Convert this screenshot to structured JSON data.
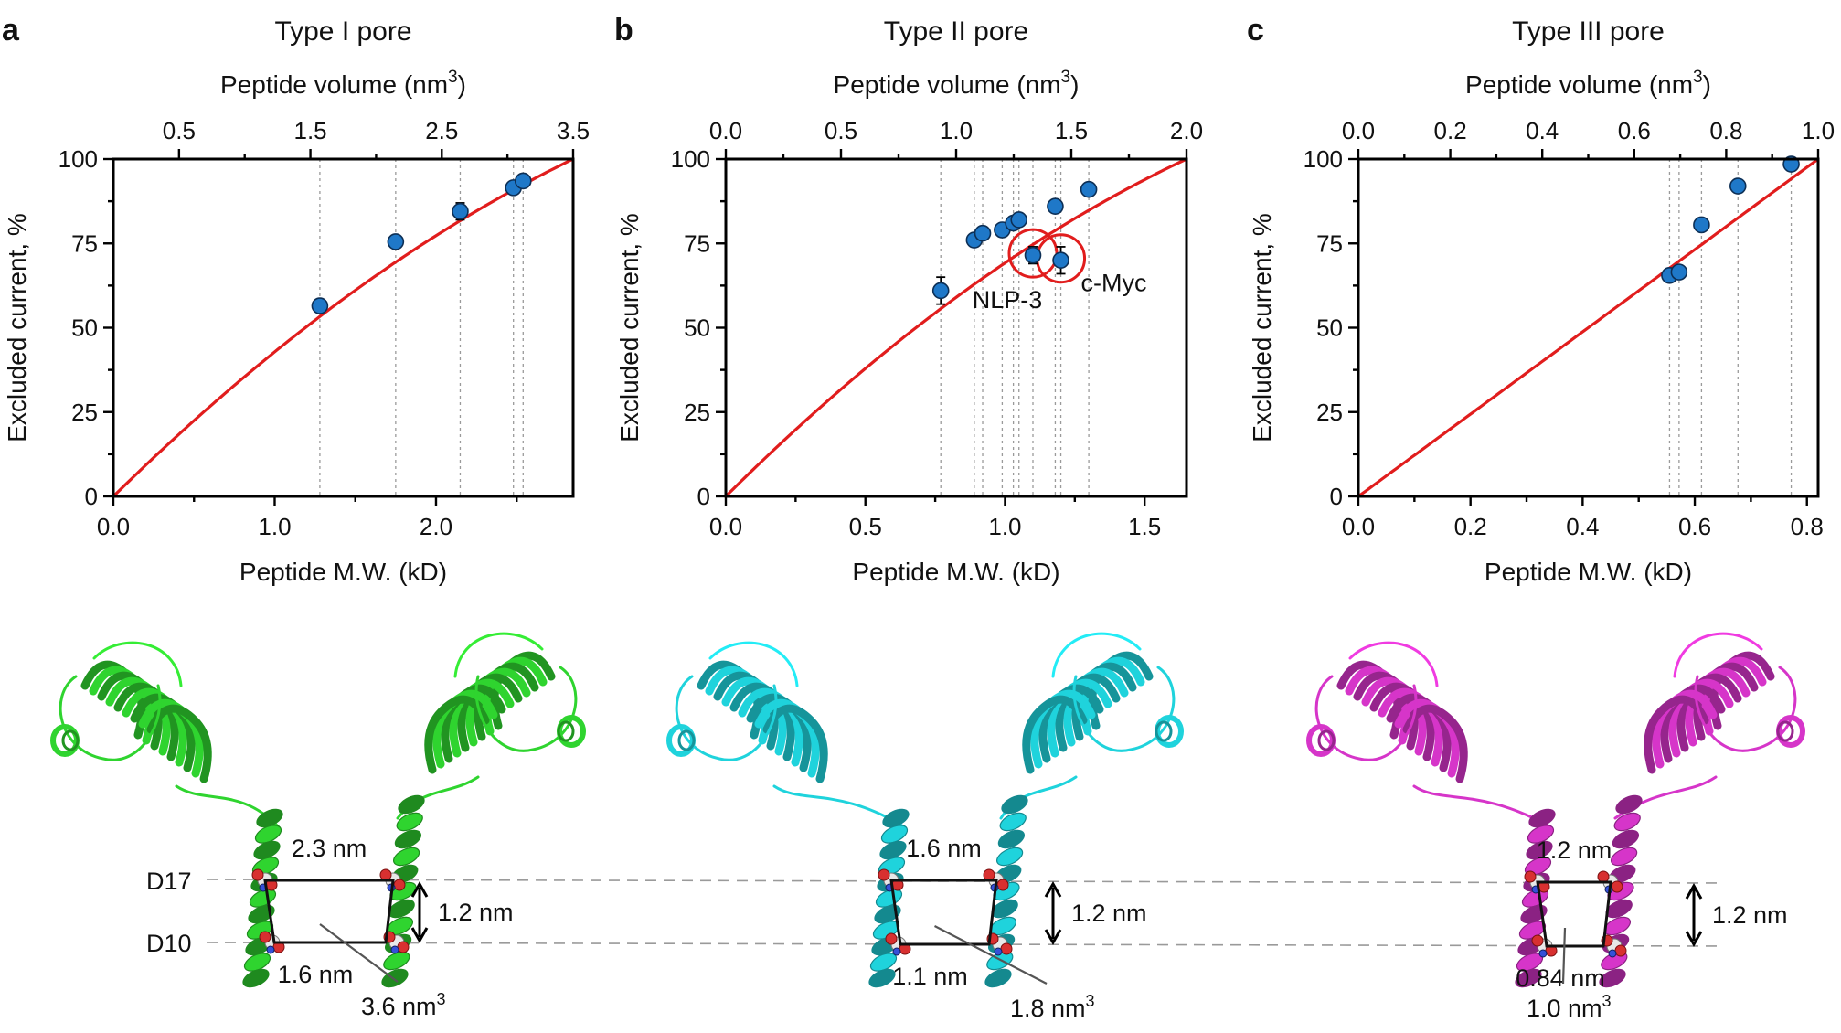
{
  "chart_data": [
    {
      "type": "scatter",
      "panel_label": "a",
      "title": "Type I pore",
      "xlabel": "Peptide M.W. (kD)",
      "ylabel": "Excluded current, %",
      "x2label_main": "Peptide volume (nm",
      "x2label_sup": "3",
      "x2label_end": ")",
      "xlim": [
        0,
        2.85
      ],
      "ylim": [
        0,
        100
      ],
      "x2lim": [
        0,
        3.5
      ],
      "xticks": [
        0.0,
        1.0,
        2.0
      ],
      "xtick_labels": [
        "0.0",
        "1.0",
        "2.0"
      ],
      "x_minor": [
        0.5,
        1.5,
        2.5
      ],
      "yticks": [
        0,
        25,
        50,
        75,
        100
      ],
      "ytick_labels": [
        "0",
        "25",
        "50",
        "75",
        "100"
      ],
      "x2ticks": [
        0.5,
        1.5,
        2.5,
        3.5
      ],
      "x2tick_labels": [
        "0.5",
        "1.5",
        "2.5",
        "3.5"
      ],
      "x2_minor": [
        1.0,
        2.0,
        3.0
      ],
      "series": [
        {
          "name": "peptides",
          "x": [
            1.28,
            1.75,
            2.15,
            2.48,
            2.54
          ],
          "y": [
            56.5,
            75.5,
            84.5,
            91.5,
            93.5
          ],
          "err": [
            0,
            0,
            2.5,
            0,
            0
          ]
        }
      ],
      "fit": {
        "name": "fit",
        "kind": "quadratic",
        "curvature": 0.34
      }
    },
    {
      "type": "scatter",
      "panel_label": "b",
      "title": "Type II pore",
      "xlabel": "Peptide M.W. (kD)",
      "ylabel": "Excluded current, %",
      "x2label_main": "Peptide volume (nm",
      "x2label_sup": "3",
      "x2label_end": ")",
      "xlim": [
        0,
        1.65
      ],
      "ylim": [
        0,
        100
      ],
      "x2lim": [
        0,
        2.0
      ],
      "xticks": [
        0.0,
        0.5,
        1.0,
        1.5
      ],
      "xtick_labels": [
        "0.0",
        "0.5",
        "1.0",
        "1.5"
      ],
      "x_minor": [
        0.25,
        0.75,
        1.25
      ],
      "yticks": [
        0,
        25,
        50,
        75,
        100
      ],
      "ytick_labels": [
        "0",
        "25",
        "50",
        "75",
        "100"
      ],
      "x2ticks": [
        0.0,
        0.5,
        1.0,
        1.5,
        2.0
      ],
      "x2tick_labels": [
        "0.0",
        "0.5",
        "1.0",
        "1.5",
        "2.0"
      ],
      "x2_minor": [
        0.25,
        0.75,
        1.25,
        1.75
      ],
      "series": [
        {
          "name": "peptides",
          "x": [
            0.77,
            0.89,
            0.92,
            0.99,
            1.03,
            1.05,
            1.1,
            1.18,
            1.2,
            1.3
          ],
          "y": [
            61,
            76,
            78,
            79,
            81,
            82,
            71.5,
            86,
            70,
            91
          ],
          "err": [
            4,
            0,
            0,
            0,
            0,
            0,
            2.5,
            0,
            4,
            0
          ]
        }
      ],
      "fit": {
        "name": "fit",
        "kind": "quadratic",
        "curvature": 0.36
      },
      "highlights": [
        {
          "label": "NLP-3",
          "x": 1.1,
          "y": 71.5
        },
        {
          "label": "c-Myc",
          "x": 1.2,
          "y": 70
        }
      ]
    },
    {
      "type": "scatter",
      "panel_label": "c",
      "title": "Type III pore",
      "xlabel": "Peptide M.W. (kD)",
      "ylabel": "Excluded current, %",
      "x2label_main": "Peptide volume (nm",
      "x2label_sup": "3",
      "x2label_end": ")",
      "xlim": [
        0,
        0.82
      ],
      "ylim": [
        0,
        100
      ],
      "x2lim": [
        0,
        1.0
      ],
      "xticks": [
        0.0,
        0.2,
        0.4,
        0.6,
        0.8
      ],
      "xtick_labels": [
        "0.0",
        "0.2",
        "0.4",
        "0.6",
        "0.8"
      ],
      "x_minor": [
        0.1,
        0.3,
        0.5,
        0.7
      ],
      "yticks": [
        0,
        25,
        50,
        75,
        100
      ],
      "ytick_labels": [
        "0",
        "25",
        "50",
        "75",
        "100"
      ],
      "x2ticks": [
        0.0,
        0.2,
        0.4,
        0.6,
        0.8,
        1.0
      ],
      "x2tick_labels": [
        "0.0",
        "0.2",
        "0.4",
        "0.6",
        "0.8",
        "1.0"
      ],
      "x2_minor": [
        0.1,
        0.3,
        0.5,
        0.7,
        0.9
      ],
      "series": [
        {
          "name": "peptides",
          "x": [
            0.555,
            0.572,
            0.612,
            0.677,
            0.772
          ],
          "y": [
            65.5,
            66.5,
            80.5,
            92,
            98.5
          ],
          "err": [
            0,
            0,
            0,
            0,
            0
          ]
        }
      ],
      "fit": {
        "name": "fit",
        "kind": "linear",
        "curvature": 0
      }
    }
  ],
  "structures": [
    {
      "color": "#2fd42f",
      "width_label": "2.3 nm",
      "bottom_label": "1.6 nm",
      "height_label": "1.2 nm",
      "volume_main": "3.6 nm",
      "volume_sup": "3",
      "top_residue": "D17",
      "bottom_residue": "D10"
    },
    {
      "color": "#1fd3dc",
      "width_label": "1.6 nm",
      "bottom_label": "1.1 nm",
      "height_label": "1.2 nm",
      "volume_main": "1.8 nm",
      "volume_sup": "3"
    },
    {
      "color": "#d635c9",
      "width_label": "1.2 nm",
      "bottom_label": "0.84 nm",
      "height_label": "1.2 nm",
      "volume_main": "1.0 nm",
      "volume_sup": "3"
    }
  ]
}
